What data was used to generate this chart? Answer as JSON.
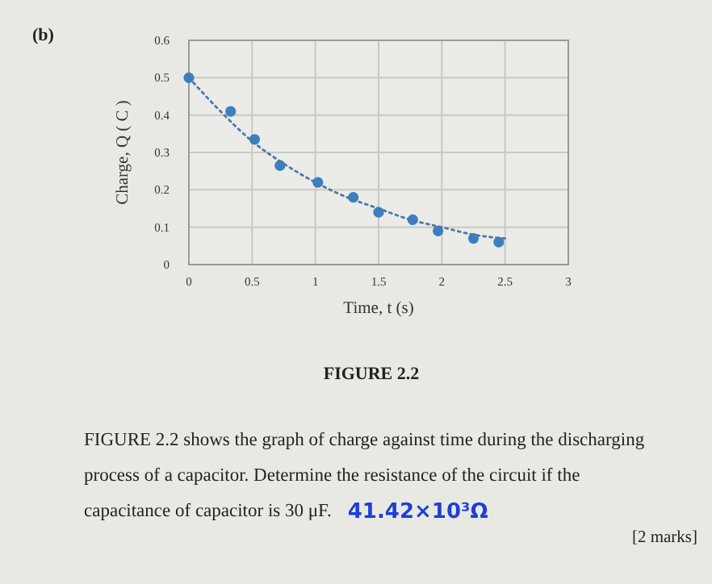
{
  "chart_data": {
    "type": "scatter",
    "xlabel": "Time, t (s)",
    "ylabel": "Charge, Q ( C )",
    "xlim": [
      0,
      3
    ],
    "xticks": [
      0,
      0.5,
      1,
      1.5,
      2,
      2.5,
      3
    ],
    "ylim": [
      0,
      0.6
    ],
    "yticks": [
      0,
      0.1,
      0.2,
      0.3,
      0.4,
      0.5,
      0.6
    ],
    "grid": true,
    "marker": "circle",
    "series": [
      {
        "color": "#3b7fc0",
        "x": [
          0,
          0.33,
          0.52,
          0.72,
          1.02,
          1.3,
          1.5,
          1.77,
          1.97,
          2.25,
          2.45
        ],
        "values": [
          0.5,
          0.41,
          0.335,
          0.265,
          0.22,
          0.18,
          0.14,
          0.12,
          0.09,
          0.07,
          0.06
        ]
      },
      {
        "type": "line",
        "color": "#4a78a8",
        "line_style": "dotted",
        "marker": "none",
        "x": [
          0,
          0.25,
          0.5,
          0.75,
          1,
          1.25,
          1.5,
          1.75,
          2,
          2.25,
          2.5
        ],
        "values": [
          0.5,
          0.41,
          0.33,
          0.27,
          0.22,
          0.18,
          0.15,
          0.12,
          0.1,
          0.08,
          0.07
        ]
      }
    ],
    "annotations": [
      "(b)",
      "FIGURE 2.2",
      "FIGURE 2.2 shows the graph of charge against time during the discharging process of a capacitor. Determine the resistance of the circuit if the capacitance of capacitor is 30 μF.",
      "41.42×10³Ω",
      "[2 marks]"
    ]
  }
}
